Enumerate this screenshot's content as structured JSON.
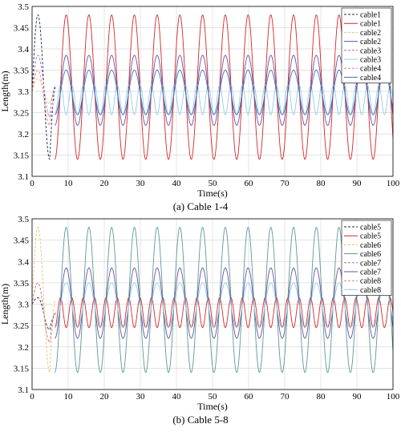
{
  "chart_data": [
    {
      "type": "line",
      "caption": "(a) Cable 1-4",
      "xlabel": "Time(s)",
      "ylabel": "Length(m)",
      "xlim": [
        0,
        100
      ],
      "ylim": [
        3.1,
        3.5
      ],
      "xticks": [
        0,
        10,
        20,
        30,
        40,
        50,
        60,
        70,
        80,
        90,
        100
      ],
      "yticks": [
        3.1,
        3.15,
        3.2,
        3.25,
        3.3,
        3.35,
        3.4,
        3.45,
        3.5
      ],
      "grid": true,
      "legend_position": "top-right",
      "series": [
        {
          "name": "cable1",
          "style": "dashed",
          "color": "#1f2a44",
          "t_start": 0,
          "t_end": 6.5,
          "start": 3.3,
          "min": 3.14,
          "max": 3.48
        },
        {
          "name": "cable1",
          "style": "solid",
          "color": "#d62728",
          "t_start": 6.3,
          "t_end": 100,
          "period": 6.3,
          "min": 3.14,
          "max": 3.48
        },
        {
          "name": "cable2",
          "style": "dashed",
          "color": "#e6c46a",
          "t_start": 0,
          "t_end": 6.5,
          "start": 3.3,
          "min": 3.27,
          "max": 3.33
        },
        {
          "name": "cable2",
          "style": "solid",
          "color": "#6b4f9e",
          "t_start": 6.3,
          "t_end": 100,
          "period": 6.3,
          "min": 3.22,
          "max": 3.385
        },
        {
          "name": "cable3",
          "style": "dashed",
          "color": "#a56cc1",
          "t_start": 0,
          "t_end": 6.5,
          "start": 3.3,
          "min": 3.24,
          "max": 3.385
        },
        {
          "name": "cable3",
          "style": "solid",
          "color": "#8fd0e8",
          "t_start": 6.3,
          "t_end": 100,
          "period": 3.15,
          "min": 3.245,
          "max": 3.315
        },
        {
          "name": "cable4",
          "style": "dashed",
          "color": "#d9868a",
          "t_start": 0,
          "t_end": 6.5,
          "start": 3.3,
          "min": 3.22,
          "max": 3.35
        },
        {
          "name": "cable4",
          "style": "solid",
          "color": "#4a6fb0",
          "t_start": 6.3,
          "t_end": 100,
          "period": 6.3,
          "min": 3.245,
          "max": 3.35
        }
      ]
    },
    {
      "type": "line",
      "caption": "(b) Cable 5-8",
      "xlabel": "Time(s)",
      "ylabel": "Length(m)",
      "xlim": [
        0,
        100
      ],
      "ylim": [
        3.1,
        3.5
      ],
      "xticks": [
        0,
        10,
        20,
        30,
        40,
        50,
        60,
        70,
        80,
        90,
        100
      ],
      "yticks": [
        3.1,
        3.15,
        3.2,
        3.25,
        3.3,
        3.35,
        3.4,
        3.45,
        3.5
      ],
      "grid": true,
      "legend_position": "top-right",
      "series": [
        {
          "name": "cable5",
          "style": "dashed",
          "color": "#1f2a44",
          "t_start": 0,
          "t_end": 6.5,
          "start": 3.3,
          "min": 3.24,
          "max": 3.315
        },
        {
          "name": "cable5",
          "style": "solid",
          "color": "#d62728",
          "t_start": 6.3,
          "t_end": 100,
          "period": 3.15,
          "min": 3.245,
          "max": 3.315
        },
        {
          "name": "cable6",
          "style": "dashed",
          "color": "#e6c46a",
          "t_start": 0,
          "t_end": 6.5,
          "start": 3.3,
          "min": 3.14,
          "max": 3.48
        },
        {
          "name": "cable6",
          "style": "solid",
          "color": "#5a9b95",
          "t_start": 6.3,
          "t_end": 100,
          "period": 6.3,
          "min": 3.14,
          "max": 3.48
        },
        {
          "name": "cable7",
          "style": "dashed",
          "color": "#a56cc1",
          "t_start": 0,
          "t_end": 6.5,
          "start": 3.3,
          "min": 3.21,
          "max": 3.35
        },
        {
          "name": "cable7",
          "style": "solid",
          "color": "#6b4f9e",
          "t_start": 6.3,
          "t_end": 100,
          "period": 6.3,
          "min": 3.22,
          "max": 3.385
        },
        {
          "name": "cable8",
          "style": "dashed",
          "color": "#d9868a",
          "t_start": 0,
          "t_end": 6.5,
          "start": 3.3,
          "min": 3.21,
          "max": 3.35
        },
        {
          "name": "cable8",
          "style": "solid",
          "color": "#8fd0e8",
          "t_start": 6.3,
          "t_end": 100,
          "period": 6.3,
          "min": 3.245,
          "max": 3.35
        }
      ]
    }
  ]
}
